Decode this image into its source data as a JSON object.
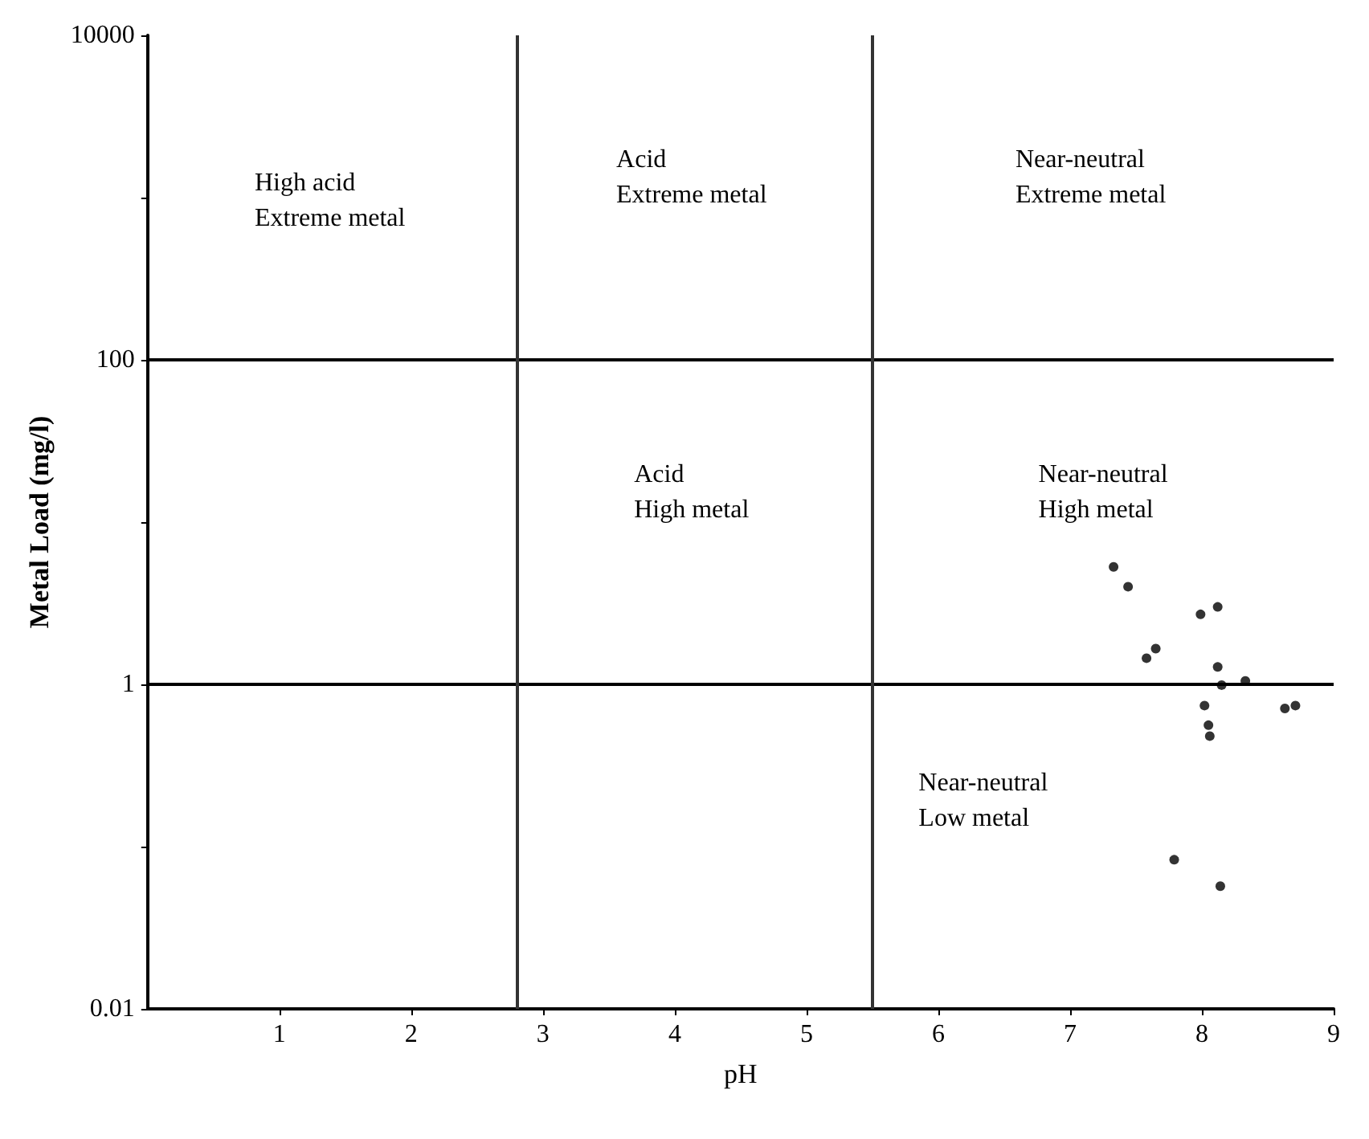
{
  "chart_data": {
    "type": "scatter",
    "xlabel": "pH",
    "ylabel": "Metal Load (mg/l)",
    "x": [
      7.99,
      8.12,
      7.65,
      7.58,
      8.12,
      8.15,
      8.33,
      8.02,
      8.05,
      8.06,
      8.63,
      8.71,
      7.79,
      8.14,
      7.33,
      7.44
    ],
    "values": [
      2.7,
      3.0,
      1.66,
      1.45,
      1.28,
      0.99,
      1.05,
      0.74,
      0.56,
      0.48,
      0.71,
      0.74,
      0.083,
      0.057,
      5.3,
      4.0
    ],
    "color": "#000000",
    "marker": "circle",
    "log": "y",
    "grid": false,
    "xlim": [
      0,
      9
    ],
    "xticks": [
      1,
      2,
      3,
      4,
      5,
      6,
      7,
      8,
      9
    ],
    "ylim": [
      0.01,
      10000
    ],
    "yticks": [
      0.01,
      {
        "value": 0.1,
        "label": null
      },
      1,
      {
        "value": 10,
        "label": null
      },
      100,
      {
        "value": 1000,
        "label": null
      },
      10000
    ],
    "ref_lines": [
      {
        "axis": "y",
        "value": 100,
        "color": "#000000"
      },
      {
        "axis": "y",
        "value": 1,
        "color": "#000000"
      },
      {
        "axis": "x",
        "value": 2.8,
        "color": "#333333"
      },
      {
        "axis": "x",
        "value": 5.5,
        "color": "#333333"
      }
    ],
    "annotations": [
      "High acid\nExtreme metal",
      "Acid\nExtreme metal",
      "Near-neutral\nExtreme metal",
      "Acid\nHigh metal",
      "Near-neutral\nHigh metal",
      "Near-neutral\nLow metal"
    ]
  }
}
